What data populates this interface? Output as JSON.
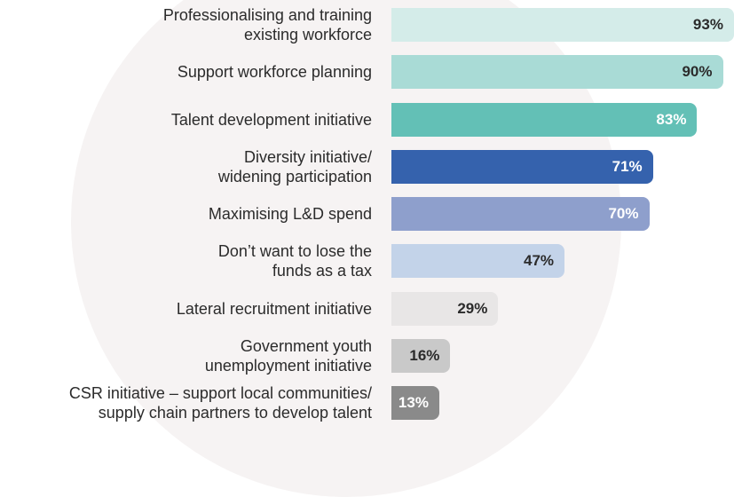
{
  "chart_data": {
    "type": "bar",
    "orientation": "horizontal",
    "categories": [
      "Professionalising and training\nexisting workforce",
      "Support workforce planning",
      "Talent development initiative",
      "Diversity initiative/\nwidening participation",
      "Maximising L&D spend",
      "Don’t want to lose the\nfunds as a tax",
      "Lateral recruitment initiative",
      "Government youth\nunemployment initiative",
      "CSR initiative – support local communities/\nsupply chain partners to develop talent"
    ],
    "values": [
      93,
      90,
      83,
      71,
      70,
      47,
      29,
      16,
      13
    ],
    "value_labels": [
      "93%",
      "90%",
      "83%",
      "71%",
      "70%",
      "47%",
      "29%",
      "16%",
      "13%"
    ],
    "bar_colors": [
      "#d4ece9",
      "#a9dbd6",
      "#63c0b6",
      "#3562ad",
      "#8e9fcc",
      "#c3d3e9",
      "#e8e6e6",
      "#c9c9c9",
      "#8a8a8a"
    ],
    "value_label_colors": [
      "#2b2b2b",
      "#2b2b2b",
      "#ffffff",
      "#ffffff",
      "#ffffff",
      "#2b2b2b",
      "#2b2b2b",
      "#2b2b2b",
      "#ffffff"
    ],
    "xlim": [
      0,
      100
    ],
    "title": "",
    "xlabel": "",
    "ylabel": "",
    "grid": false,
    "legend": "none"
  }
}
